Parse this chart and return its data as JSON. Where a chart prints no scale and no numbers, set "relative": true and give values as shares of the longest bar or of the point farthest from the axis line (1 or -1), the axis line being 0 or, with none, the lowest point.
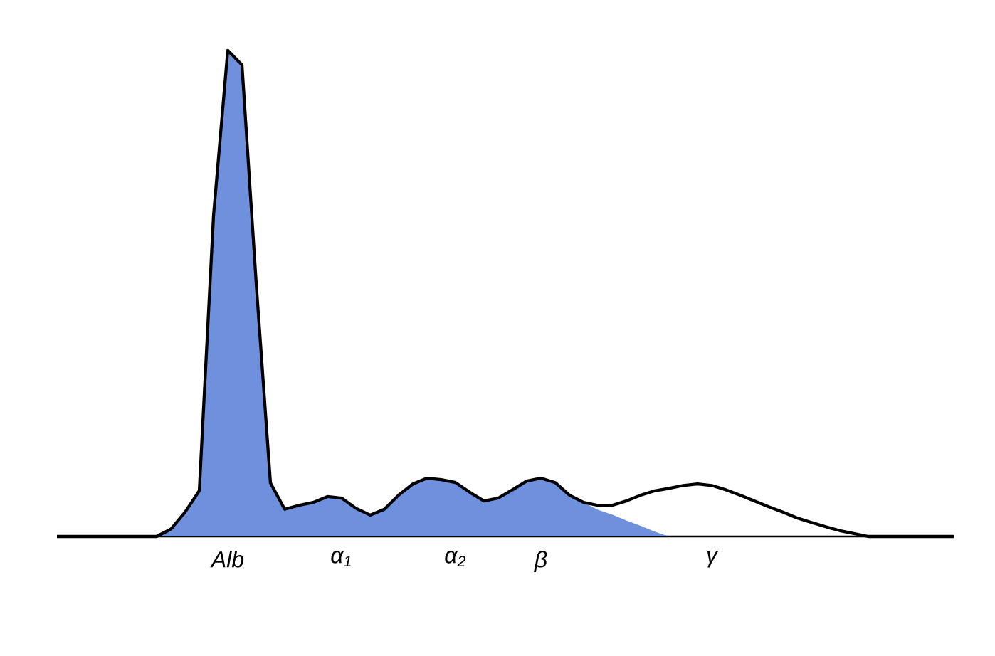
{
  "chart_data": {
    "type": "area",
    "relative": true,
    "categories": [
      null,
      null,
      null,
      null,
      null,
      null,
      null,
      null,
      null,
      null,
      null,
      null,
      "Alb",
      null,
      null,
      null,
      null,
      null,
      null,
      null,
      "α$_{1}$",
      null,
      null,
      null,
      null,
      null,
      null,
      null,
      "α$_{2}$",
      null,
      null,
      null,
      null,
      null,
      "β",
      null,
      null,
      null,
      null,
      null,
      null,
      null,
      null,
      null,
      null,
      null,
      "γ",
      null,
      null,
      null,
      null,
      null,
      null,
      null,
      null,
      null,
      null,
      null,
      null,
      null,
      null,
      null,
      null,
      null
    ],
    "series": [
      {
        "color": "#6f90dd",
        "values": [
          0,
          0,
          0,
          0,
          0,
          0,
          0,
          0,
          0.015,
          0.05,
          0.094,
          0.66,
          1.0,
          0.97,
          0.52,
          0.11,
          0.056,
          0.064,
          0.07,
          0.082,
          0.079,
          0.058,
          0.044,
          0.056,
          0.085,
          0.108,
          0.12,
          0.117,
          0.111,
          0.091,
          0.073,
          0.079,
          0.096,
          0.114,
          0.12,
          0.111,
          0.085,
          0.07,
          0.055,
          0.045,
          0.033,
          0.022,
          0.01,
          0,
          null,
          null,
          null,
          null,
          null,
          null,
          null,
          null,
          null,
          null,
          null,
          null,
          null,
          null,
          null,
          null,
          null,
          null,
          null,
          null
        ]
      },
      {
        "type": "line",
        "color": "#000000",
        "values": [
          0,
          0,
          0,
          0,
          0,
          0,
          0,
          0,
          0.015,
          0.05,
          0.094,
          0.66,
          1.0,
          0.97,
          0.52,
          0.11,
          0.056,
          0.064,
          0.07,
          0.082,
          0.079,
          0.058,
          0.044,
          0.056,
          0.085,
          0.108,
          0.12,
          0.117,
          0.111,
          0.091,
          0.073,
          0.079,
          0.096,
          0.114,
          0.12,
          0.111,
          0.085,
          0.07,
          0.064,
          0.064,
          0.073,
          0.085,
          0.094,
          0.099,
          0.105,
          0.108,
          0.105,
          0.096,
          0.085,
          0.073,
          0.061,
          0.05,
          0.038,
          0.029,
          0.02,
          0.012,
          0.006,
          0,
          0,
          0,
          0,
          0,
          0,
          0
        ]
      }
    ]
  }
}
